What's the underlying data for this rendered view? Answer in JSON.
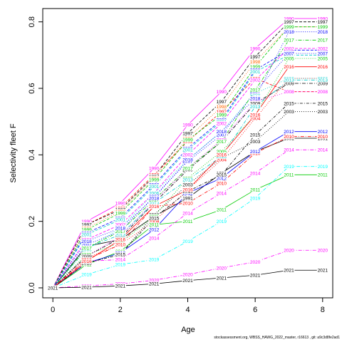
{
  "chart_data": {
    "type": "line",
    "title": "",
    "xlabel": "Age",
    "ylabel": "Selectivity fleet F",
    "xlim": [
      -0.3,
      8.3
    ],
    "ylim": [
      -0.03,
      0.84
    ],
    "x_ticks": [
      0,
      2,
      4,
      6,
      8
    ],
    "y_ticks": [
      0.0,
      0.2,
      0.4,
      0.6,
      0.8
    ],
    "x_tick_labels": [
      "0",
      "2",
      "4",
      "6",
      "8"
    ],
    "y_tick_labels": [
      "0.0",
      "0.2",
      "0.4",
      "0.6",
      "0.8"
    ],
    "grid": false,
    "legend": "none",
    "point_labels": "year of each series printed at every point",
    "ages": [
      0,
      1,
      2,
      3,
      4,
      5,
      6,
      7,
      8
    ],
    "series": [
      {
        "name": "1990",
        "color": "#ff00ff",
        "linestyle": "solid",
        "values": [
          0.0,
          0.2,
          0.255,
          0.36,
          0.49,
          0.59,
          0.72,
          0.81,
          0.81
        ]
      },
      {
        "name": "1991",
        "color": "#000000",
        "linestyle": "solid",
        "values": [
          0.0,
          0.125,
          0.145,
          0.215,
          0.27,
          0.345,
          0.41,
          0.45,
          0.45
        ]
      },
      {
        "name": "1992",
        "color": "#ff0000",
        "linestyle": "dashed",
        "values": [
          0.0,
          0.19,
          0.24,
          0.34,
          0.44,
          0.53,
          0.63,
          0.59,
          0.59
        ]
      },
      {
        "name": "1997",
        "color": "#000000",
        "linestyle": "dashed",
        "values": [
          0.0,
          0.19,
          0.235,
          0.335,
          0.465,
          0.56,
          0.695,
          0.8,
          0.8
        ]
      },
      {
        "name": "1998",
        "color": "#ff6600",
        "linestyle": "dotted",
        "values": [
          0.0,
          0.18,
          0.23,
          0.33,
          0.45,
          0.545,
          0.68,
          0.785,
          0.785
        ]
      },
      {
        "name": "1999",
        "color": "#00c800",
        "linestyle": "dashed",
        "values": [
          0.0,
          0.175,
          0.225,
          0.325,
          0.445,
          0.52,
          0.665,
          0.785,
          0.785
        ]
      },
      {
        "name": "2000",
        "color": "#0000ff",
        "linestyle": "dashed",
        "values": [
          0.0,
          0.165,
          0.21,
          0.31,
          0.42,
          0.505,
          0.655,
          0.715,
          0.715
        ]
      },
      {
        "name": "2001",
        "color": "#00cccc",
        "linestyle": "dashed",
        "values": [
          0.0,
          0.16,
          0.205,
          0.305,
          0.415,
          0.5,
          0.65,
          0.7,
          0.7
        ]
      },
      {
        "name": "2002",
        "color": "#ff00ff",
        "linestyle": "dashed",
        "values": [
          0.0,
          0.145,
          0.19,
          0.285,
          0.4,
          0.495,
          0.625,
          0.72,
          0.72
        ]
      },
      {
        "name": "2003",
        "color": "#000000",
        "linestyle": "dotted",
        "values": [
          0.0,
          0.075,
          0.1,
          0.22,
          0.31,
          0.39,
          0.44,
          0.53,
          0.53
        ]
      },
      {
        "name": "2004",
        "color": "#ff0000",
        "linestyle": "dotted",
        "values": [
          0.0,
          0.09,
          0.13,
          0.2,
          0.295,
          0.385,
          0.51,
          0.63,
          0.63
        ]
      },
      {
        "name": "2005",
        "color": "#00cc00",
        "linestyle": "dotted",
        "values": [
          0.0,
          0.1,
          0.135,
          0.215,
          0.33,
          0.41,
          0.52,
          0.69,
          0.69
        ]
      },
      {
        "name": "2006",
        "color": "#00cccc",
        "linestyle": "dotted",
        "values": [
          0.0,
          0.115,
          0.18,
          0.285,
          0.385,
          0.47,
          0.585,
          0.63,
          0.63
        ]
      },
      {
        "name": "2007",
        "color": "#0000ff",
        "linestyle": "dotted",
        "values": [
          0.0,
          0.13,
          0.17,
          0.275,
          0.38,
          0.46,
          0.59,
          0.705,
          0.705
        ]
      },
      {
        "name": "2008",
        "color": "#ff00ff",
        "linestyle": "dotted",
        "values": [
          0.0,
          0.095,
          0.155,
          0.26,
          0.36,
          0.445,
          0.56,
          0.59,
          0.59
        ]
      },
      {
        "name": "2009",
        "color": "#000000",
        "linestyle": "dashdot",
        "values": [
          0.0,
          0.095,
          0.15,
          0.255,
          0.355,
          0.44,
          0.555,
          0.615,
          0.615
        ]
      },
      {
        "name": "2010",
        "color": "#ff0000",
        "linestyle": "dashdot",
        "values": [
          0.0,
          0.085,
          0.13,
          0.245,
          0.255,
          0.315,
          0.405,
          0.455,
          0.455
        ]
      },
      {
        "name": "2011",
        "color": "#00cc00",
        "linestyle": "solid",
        "values": [
          0.0,
          0.07,
          0.11,
          0.19,
          0.2,
          0.235,
          0.295,
          0.34,
          0.34
        ]
      },
      {
        "name": "2012",
        "color": "#0000ff",
        "linestyle": "solid",
        "values": [
          0.0,
          0.075,
          0.105,
          0.175,
          0.285,
          0.33,
          0.41,
          0.47,
          0.47
        ]
      },
      {
        "name": "2013",
        "color": "#00cccc",
        "linestyle": "dashdot",
        "values": [
          0.0,
          0.12,
          0.16,
          0.255,
          0.325,
          0.395,
          0.545,
          0.625,
          0.625
        ]
      },
      {
        "name": "2014",
        "color": "#ff00ff",
        "linestyle": "dashdot",
        "values": [
          0.0,
          0.08,
          0.085,
          0.15,
          0.225,
          0.285,
          0.345,
          0.415,
          0.415
        ]
      },
      {
        "name": "2015",
        "color": "#000000",
        "linestyle": "dotdash",
        "values": [
          0.0,
          0.075,
          0.1,
          0.21,
          0.29,
          0.34,
          0.46,
          0.555,
          0.555
        ]
      },
      {
        "name": "2016",
        "color": "#ff0000",
        "linestyle": "solid",
        "values": [
          0.0,
          0.08,
          0.145,
          0.245,
          0.295,
          0.4,
          0.52,
          0.665,
          0.665
        ]
      },
      {
        "name": "2017",
        "color": "#00cc00",
        "linestyle": "dashdot",
        "values": [
          0.0,
          0.12,
          0.17,
          0.265,
          0.36,
          0.44,
          0.595,
          0.745,
          0.745
        ]
      },
      {
        "name": "2018",
        "color": "#0000ff",
        "linestyle": "dotted",
        "values": [
          0.0,
          0.14,
          0.18,
          0.27,
          0.385,
          0.47,
          0.57,
          0.77,
          0.77
        ]
      },
      {
        "name": "2019",
        "color": "#00ffff",
        "linestyle": "dashdot",
        "values": [
          0.0,
          0.04,
          0.07,
          0.085,
          0.14,
          0.2,
          0.27,
          0.365,
          0.365
        ]
      },
      {
        "name": "2020",
        "color": "#ff00ff",
        "linestyle": "dashdot",
        "values": [
          0.0,
          0.006,
          0.012,
          0.023,
          0.04,
          0.06,
          0.078,
          0.113,
          0.113
        ]
      },
      {
        "name": "2021",
        "color": "#000000",
        "linestyle": "solid",
        "values": [
          0.0,
          0.002,
          0.006,
          0.012,
          0.022,
          0.03,
          0.038,
          0.053,
          0.053
        ]
      }
    ],
    "footer": "stockassessment.org, WBSS_HAWG_2022_master, r16613 , git: a9c3d8fe2ad1"
  }
}
